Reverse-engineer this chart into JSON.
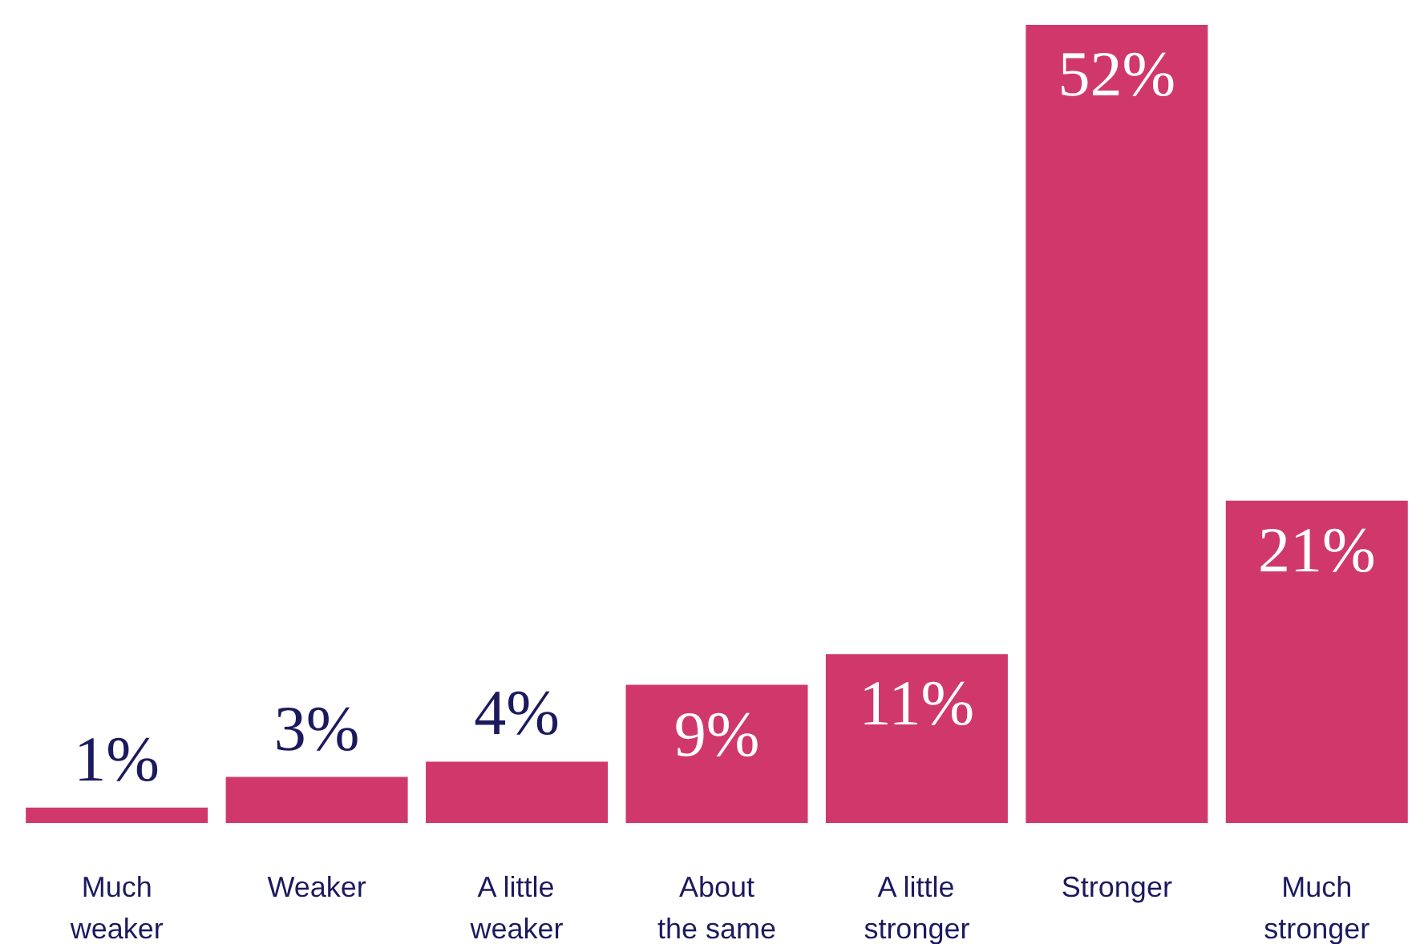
{
  "chart_data": {
    "type": "bar",
    "categories": [
      "Much\nweaker",
      "Weaker",
      "A little\nweaker",
      "About\nthe same",
      "A little\nstronger",
      "Stronger",
      "Much\nstronger"
    ],
    "values": [
      1,
      3,
      4,
      9,
      11,
      52,
      21
    ],
    "value_labels": [
      "1%",
      "3%",
      "4%",
      "9%",
      "11%",
      "52%",
      "21%"
    ],
    "color": "#d0386b"
  }
}
